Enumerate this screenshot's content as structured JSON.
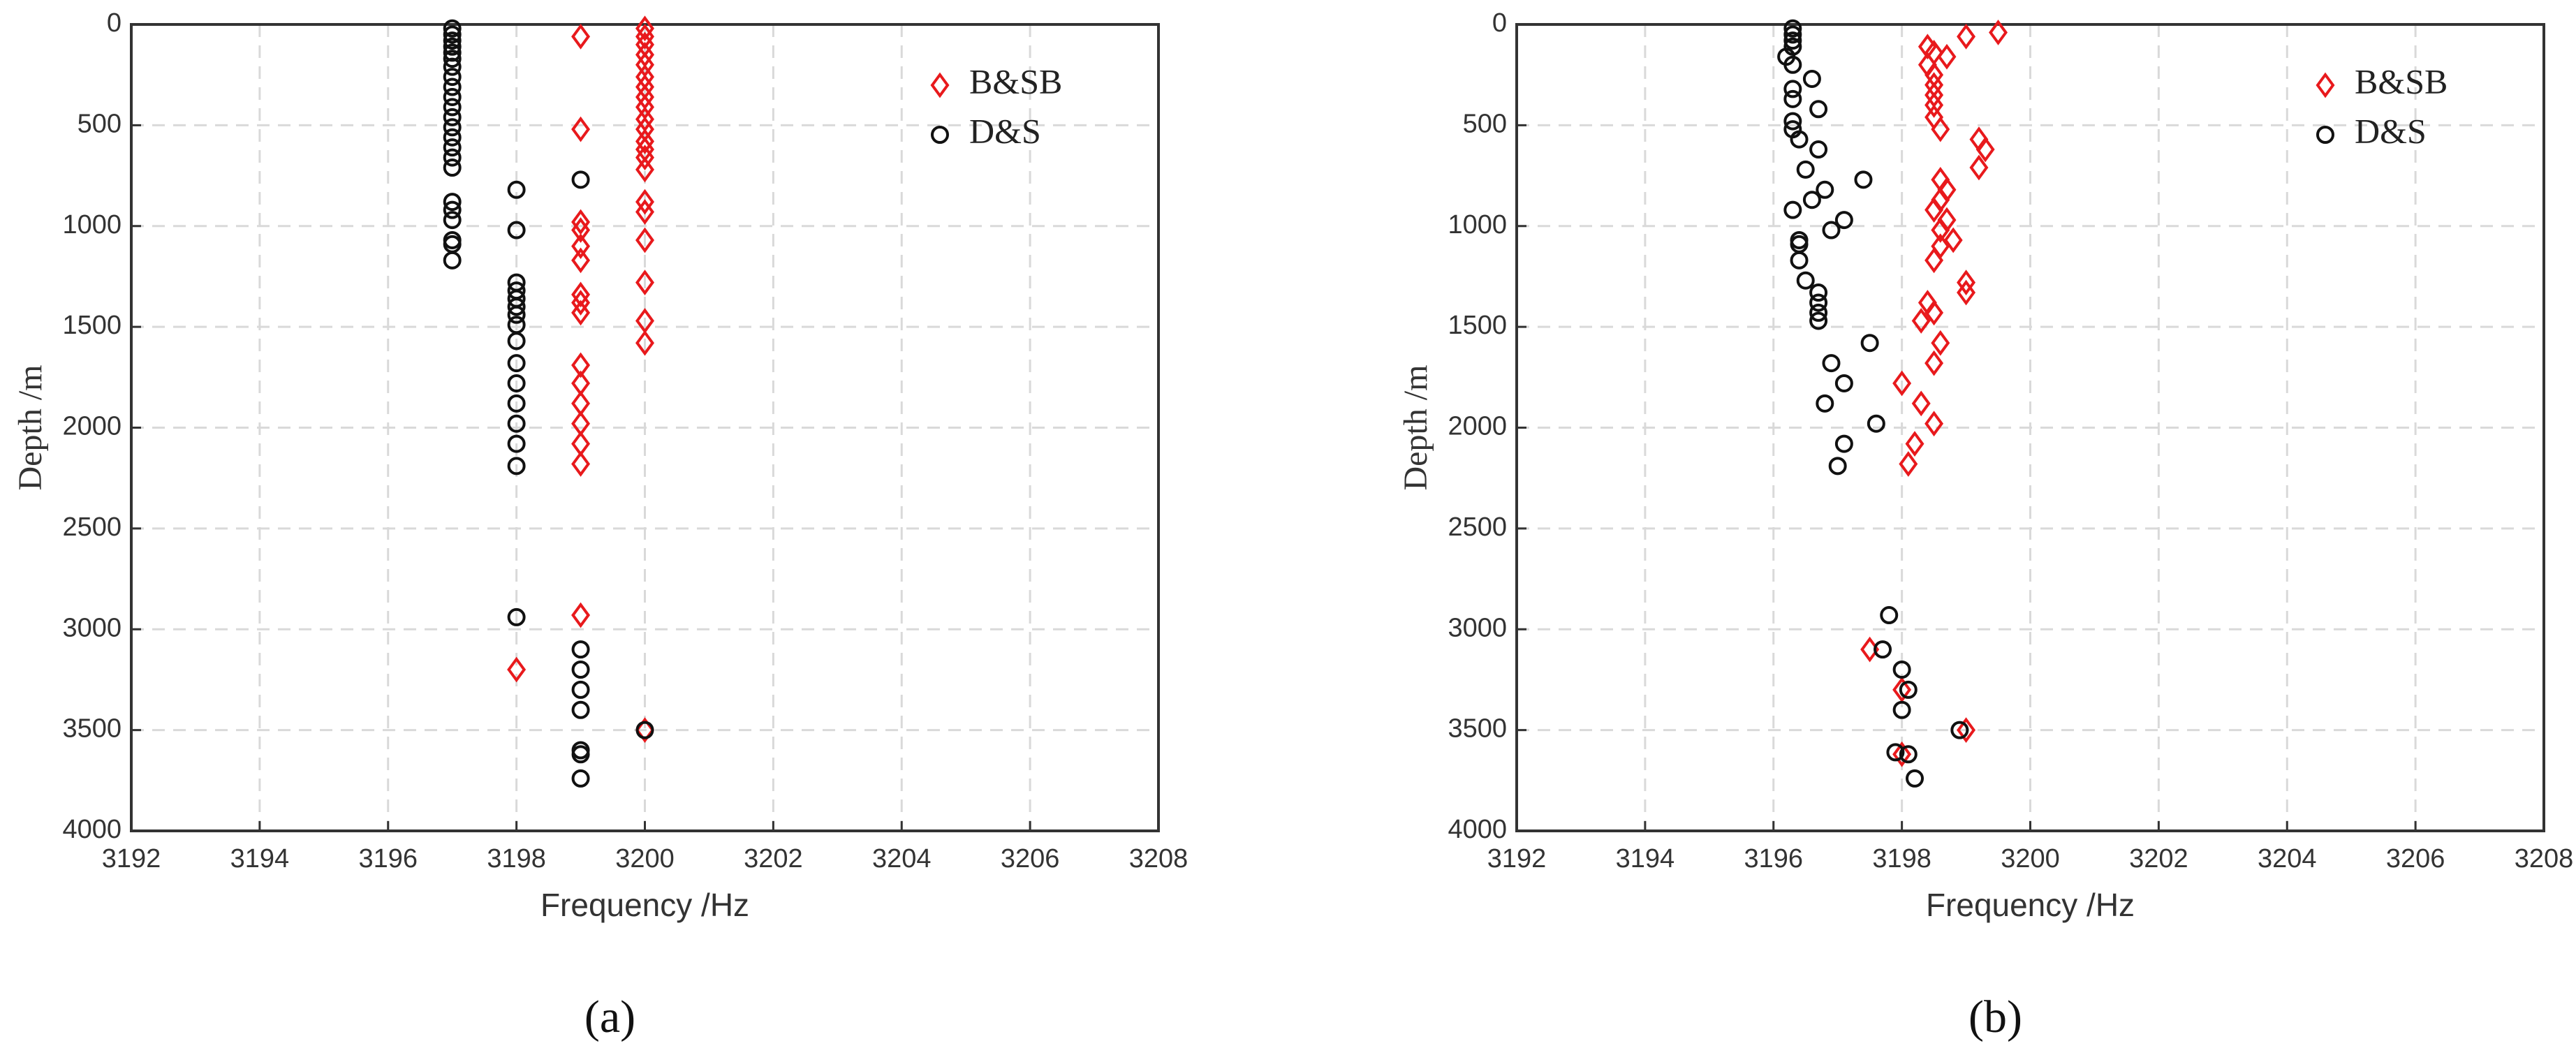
{
  "chart_data": [
    {
      "type": "scatter",
      "caption": "(a)",
      "xlabel": "Frequency /Hz",
      "ylabel": "Depth /m",
      "xlim": [
        3192,
        3208
      ],
      "xticks": [
        3192,
        3194,
        3196,
        3198,
        3200,
        3202,
        3204,
        3206,
        3208
      ],
      "ylim": [
        0,
        4000
      ],
      "yticks": [
        0,
        500,
        1000,
        1500,
        2000,
        2500,
        3000,
        3500,
        4000
      ],
      "y_inverted": true,
      "grid": true,
      "legend": "upper right",
      "series": [
        {
          "name": "B&SB",
          "color": "#e8191c",
          "marker": "diamond",
          "x": [
            3199,
            3199,
            3199,
            3199,
            3199,
            3199,
            3199,
            3199,
            3199,
            3199,
            3199,
            3199,
            3199,
            3199,
            3199,
            3199,
            3200,
            3200,
            3200,
            3200,
            3200,
            3200,
            3200,
            3200,
            3200,
            3200,
            3200,
            3200,
            3200,
            3200,
            3200,
            3200,
            3200,
            3200,
            3200,
            3200,
            3200,
            3200,
            3198
          ],
          "y": [
            60,
            520,
            980,
            1020,
            1100,
            1170,
            1340,
            1380,
            1430,
            1690,
            1780,
            1880,
            1980,
            2080,
            2180,
            2930,
            20,
            60,
            100,
            150,
            200,
            260,
            310,
            360,
            410,
            470,
            520,
            580,
            620,
            660,
            720,
            880,
            930,
            1070,
            1280,
            1470,
            1580,
            3500,
            3200
          ]
        },
        {
          "name": "D&S",
          "color": "#111111",
          "marker": "circle",
          "x": [
            3197,
            3197,
            3197,
            3197,
            3197,
            3197,
            3197,
            3197,
            3197,
            3197,
            3197,
            3197,
            3197,
            3197,
            3197,
            3197,
            3197,
            3197,
            3197,
            3197,
            3197,
            3197,
            3197,
            3198,
            3198,
            3198,
            3198,
            3198,
            3198,
            3198,
            3198,
            3198,
            3198,
            3198,
            3198,
            3198,
            3198,
            3198,
            3198,
            3199,
            3199,
            3199,
            3199,
            3199,
            3199,
            3199,
            3199,
            3200
          ],
          "y": [
            20,
            50,
            80,
            110,
            140,
            170,
            210,
            260,
            310,
            360,
            410,
            460,
            510,
            560,
            610,
            660,
            710,
            880,
            920,
            970,
            1070,
            1090,
            1170,
            820,
            1020,
            1280,
            1320,
            1360,
            1400,
            1440,
            1490,
            1570,
            1680,
            1780,
            1880,
            1980,
            2080,
            2190,
            2940,
            770,
            3100,
            3200,
            3300,
            3400,
            3600,
            3620,
            3740,
            3500
          ]
        }
      ]
    },
    {
      "type": "scatter",
      "caption": "(b)",
      "xlabel": "Frequency /Hz",
      "ylabel": "Depth /m",
      "xlim": [
        3192,
        3208
      ],
      "xticks": [
        3192,
        3194,
        3196,
        3198,
        3200,
        3202,
        3204,
        3206,
        3208
      ],
      "ylim": [
        0,
        4000
      ],
      "yticks": [
        0,
        500,
        1000,
        1500,
        2000,
        2500,
        3000,
        3500,
        4000
      ],
      "y_inverted": true,
      "grid": true,
      "legend": "upper right",
      "series": [
        {
          "name": "B&SB",
          "color": "#e8191c",
          "marker": "diamond",
          "x": [
            3199.5,
            3199.0,
            3198.4,
            3198.5,
            3198.7,
            3198.4,
            3198.5,
            3198.5,
            3198.5,
            3198.5,
            3198.5,
            3198.6,
            3199.2,
            3199.3,
            3199.2,
            3198.6,
            3198.7,
            3198.6,
            3198.5,
            3198.7,
            3198.8,
            3198.6,
            3198.6,
            3198.5,
            3199.0,
            3199.0,
            3198.4,
            3198.5,
            3198.3,
            3198.6,
            3198.5,
            3198.0,
            3198.3,
            3198.5,
            3198.2,
            3198.1,
            3197.5,
            3198.0,
            3198.0,
            3199.0
          ],
          "y": [
            40,
            60,
            110,
            140,
            160,
            200,
            250,
            300,
            350,
            400,
            460,
            520,
            570,
            620,
            710,
            770,
            820,
            870,
            920,
            970,
            1070,
            1020,
            1100,
            1170,
            1280,
            1330,
            1380,
            1430,
            1470,
            1580,
            1680,
            1780,
            1880,
            1980,
            2080,
            2180,
            3100,
            3300,
            3620,
            3500
          ]
        },
        {
          "name": "D&S",
          "color": "#111111",
          "marker": "circle",
          "x": [
            3196.3,
            3196.3,
            3196.3,
            3196.3,
            3196.2,
            3196.3,
            3196.6,
            3196.3,
            3196.3,
            3196.7,
            3196.3,
            3196.3,
            3196.4,
            3196.7,
            3196.5,
            3196.8,
            3196.6,
            3196.3,
            3197.4,
            3197.1,
            3196.9,
            3196.4,
            3196.4,
            3196.4,
            3196.5,
            3196.7,
            3196.7,
            3196.7,
            3196.7,
            3197.5,
            3196.9,
            3197.1,
            3196.8,
            3197.6,
            3197.1,
            3197.0,
            3197.8,
            3197.7,
            3198.0,
            3198.1,
            3198.0,
            3198.9,
            3197.9,
            3198.1,
            3198.2
          ],
          "y": [
            20,
            50,
            80,
            110,
            160,
            200,
            270,
            320,
            370,
            420,
            480,
            520,
            570,
            620,
            720,
            820,
            870,
            920,
            770,
            970,
            1020,
            1070,
            1090,
            1170,
            1270,
            1330,
            1380,
            1430,
            1470,
            1580,
            1680,
            1780,
            1880,
            1980,
            2080,
            2190,
            2930,
            3100,
            3200,
            3300,
            3400,
            3500,
            3610,
            3620,
            3740
          ]
        }
      ]
    }
  ]
}
